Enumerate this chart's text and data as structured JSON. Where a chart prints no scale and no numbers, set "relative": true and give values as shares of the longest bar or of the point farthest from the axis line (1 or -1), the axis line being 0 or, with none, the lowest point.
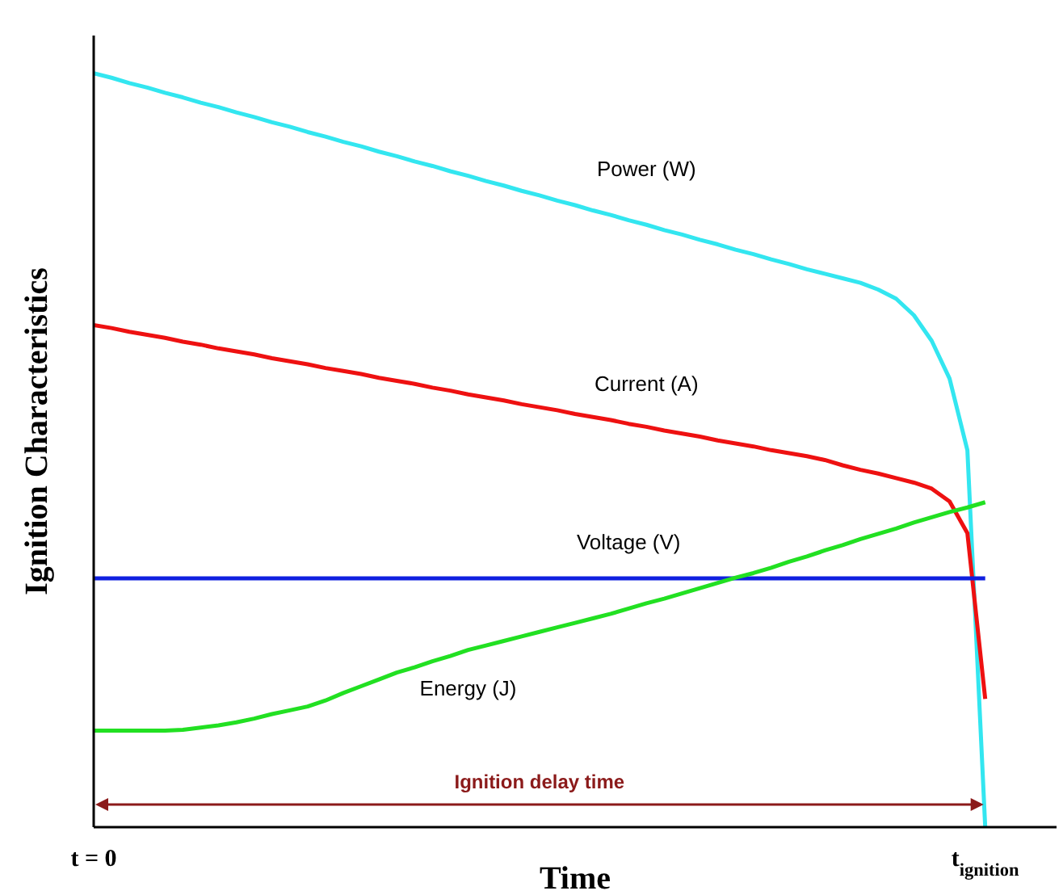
{
  "chart_data": {
    "type": "line",
    "relative": true,
    "xlabel": "Time",
    "ylabel": "Ignition Characteristics",
    "categories": [
      "t = 0",
      null,
      null,
      null,
      null,
      null,
      null,
      null,
      null,
      null,
      null,
      null,
      null,
      null,
      null,
      null,
      null,
      null,
      null,
      null,
      null,
      null,
      null,
      null,
      null,
      null,
      null,
      null,
      null,
      null,
      null,
      null,
      null,
      null,
      null,
      null,
      null,
      null,
      null,
      null,
      null,
      null,
      null,
      null,
      null,
      null,
      null,
      null,
      null,
      null,
      "t$_{ignition}$",
      null,
      null,
      null,
      null
    ],
    "annotations": [
      "Ignition delay time"
    ],
    "grid": false,
    "legend": false,
    "marker": "none",
    "line_style": "solid",
    "series": [
      {
        "name": "Power (W)",
        "color": "#33e6f0",
        "values": [
          1.0,
          0.994,
          0.987,
          0.981,
          0.974,
          0.968,
          0.961,
          0.955,
          0.948,
          0.942,
          0.935,
          0.929,
          0.922,
          0.916,
          0.909,
          0.903,
          0.896,
          0.89,
          0.883,
          0.877,
          0.87,
          0.864,
          0.857,
          0.851,
          0.844,
          0.838,
          0.831,
          0.825,
          0.818,
          0.812,
          0.805,
          0.799,
          0.792,
          0.786,
          0.779,
          0.773,
          0.766,
          0.76,
          0.753,
          0.747,
          0.74,
          0.734,
          0.728,
          0.722,
          0.713,
          0.701,
          0.679,
          0.645,
          0.595,
          0.5,
          0,
          null,
          null,
          null,
          null
        ]
      },
      {
        "name": "Current (A)",
        "color": "#ee1111",
        "values": [
          0.666,
          0.662,
          0.657,
          0.653,
          0.649,
          0.644,
          0.64,
          0.635,
          0.631,
          0.627,
          0.622,
          0.618,
          0.614,
          0.609,
          0.605,
          0.601,
          0.596,
          0.592,
          0.588,
          0.583,
          0.579,
          0.574,
          0.57,
          0.566,
          0.561,
          0.557,
          0.553,
          0.548,
          0.544,
          0.54,
          0.535,
          0.531,
          0.526,
          0.522,
          0.518,
          0.513,
          0.509,
          0.505,
          0.5,
          0.496,
          0.492,
          0.487,
          0.48,
          0.474,
          0.469,
          0.463,
          0.457,
          0.449,
          0.432,
          0.39,
          0.17,
          null,
          null,
          null,
          null
        ]
      },
      {
        "name": "Voltage (V)",
        "color": "#1020e0",
        "values": [
          0.33,
          0.33,
          0.33,
          0.33,
          0.33,
          0.33,
          0.33,
          0.33,
          0.33,
          0.33,
          0.33,
          0.33,
          0.33,
          0.33,
          0.33,
          0.33,
          0.33,
          0.33,
          0.33,
          0.33,
          0.33,
          0.33,
          0.33,
          0.33,
          0.33,
          0.33,
          0.33,
          0.33,
          0.33,
          0.33,
          0.33,
          0.33,
          0.33,
          0.33,
          0.33,
          0.33,
          0.33,
          0.33,
          0.33,
          0.33,
          0.33,
          0.33,
          0.33,
          0.33,
          0.33,
          0.33,
          0.33,
          0.33,
          0.33,
          0.33,
          0.33,
          null,
          null,
          null,
          null
        ]
      },
      {
        "name": "Energy (J)",
        "color": "#22e022",
        "values": [
          0.128,
          0.128,
          0.128,
          0.128,
          0.128,
          0.129,
          0.132,
          0.135,
          0.139,
          0.144,
          0.15,
          0.155,
          0.16,
          0.168,
          0.178,
          0.187,
          0.196,
          0.205,
          0.212,
          0.22,
          0.227,
          0.235,
          0.241,
          0.247,
          0.253,
          0.259,
          0.265,
          0.271,
          0.277,
          0.283,
          0.29,
          0.297,
          0.303,
          0.31,
          0.317,
          0.324,
          0.331,
          0.337,
          0.344,
          0.352,
          0.359,
          0.367,
          0.374,
          0.382,
          0.389,
          0.396,
          0.404,
          0.411,
          0.418,
          0.424,
          0.431,
          null,
          null,
          null,
          null
        ]
      }
    ]
  }
}
